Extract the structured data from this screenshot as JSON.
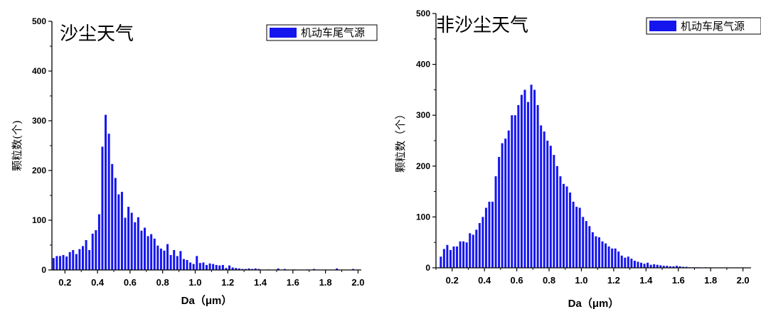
{
  "chart_data": [
    {
      "type": "bar",
      "title": "沙尘天气",
      "xlabel": "Da（μm）",
      "ylabel": "颗粒数(个)",
      "xlim": [
        0.12,
        2.02
      ],
      "ylim": [
        0,
        500
      ],
      "xticks": [
        "0.2",
        "0.4",
        "0.6",
        "0.8",
        "1.0",
        "1.2",
        "1.4",
        "1.6",
        "1.8",
        "2.0"
      ],
      "yticks": [
        "0",
        "100",
        "200",
        "300",
        "400",
        "500"
      ],
      "legend": "top-right",
      "color": "#1515ee",
      "series": [
        {
          "name": "机动车尾气源",
          "x": [
            0.13,
            0.15,
            0.17,
            0.19,
            0.21,
            0.23,
            0.25,
            0.27,
            0.29,
            0.31,
            0.33,
            0.35,
            0.37,
            0.39,
            0.41,
            0.43,
            0.45,
            0.47,
            0.49,
            0.51,
            0.53,
            0.55,
            0.57,
            0.59,
            0.61,
            0.63,
            0.65,
            0.67,
            0.69,
            0.71,
            0.73,
            0.75,
            0.77,
            0.79,
            0.81,
            0.83,
            0.85,
            0.87,
            0.89,
            0.91,
            0.93,
            0.95,
            0.97,
            0.99,
            1.01,
            1.03,
            1.05,
            1.07,
            1.09,
            1.11,
            1.13,
            1.15,
            1.17,
            1.19,
            1.21,
            1.23,
            1.25,
            1.27,
            1.29,
            1.31,
            1.33,
            1.35,
            1.37,
            1.39,
            1.45,
            1.51,
            1.55,
            1.61,
            1.69,
            1.73,
            1.87,
            1.97
          ],
          "values": [
            24,
            28,
            28,
            30,
            27,
            36,
            40,
            32,
            42,
            48,
            60,
            40,
            73,
            80,
            112,
            248,
            312,
            274,
            213,
            185,
            152,
            157,
            105,
            127,
            115,
            96,
            106,
            79,
            85,
            68,
            72,
            63,
            49,
            43,
            39,
            52,
            30,
            40,
            28,
            38,
            22,
            20,
            15,
            12,
            28,
            14,
            15,
            10,
            13,
            12,
            10,
            9,
            10,
            4,
            9,
            5,
            4,
            3,
            2,
            2,
            3,
            2,
            3,
            2,
            1,
            3,
            2,
            1,
            1,
            2,
            3,
            2
          ]
        }
      ]
    },
    {
      "type": "bar",
      "title": "非沙尘天气",
      "xlabel": "Da（μm）",
      "ylabel": "颗粒数（个）",
      "xlim": [
        0.1,
        2.05
      ],
      "ylim": [
        0,
        500
      ],
      "xticks": [
        "0.2",
        "0.4",
        "0.6",
        "0.8",
        "1.0",
        "1.2",
        "1.4",
        "1.6",
        "1.8",
        "2.0"
      ],
      "yticks": [
        "0",
        "100",
        "200",
        "300",
        "400",
        "500"
      ],
      "legend": "top-right",
      "color": "#1515ee",
      "series": [
        {
          "name": "机动车尾气源",
          "x": [
            0.13,
            0.15,
            0.17,
            0.19,
            0.21,
            0.23,
            0.25,
            0.27,
            0.29,
            0.31,
            0.33,
            0.35,
            0.37,
            0.39,
            0.41,
            0.43,
            0.45,
            0.47,
            0.49,
            0.51,
            0.53,
            0.55,
            0.57,
            0.59,
            0.61,
            0.63,
            0.65,
            0.67,
            0.69,
            0.71,
            0.73,
            0.75,
            0.77,
            0.79,
            0.81,
            0.83,
            0.85,
            0.87,
            0.89,
            0.91,
            0.93,
            0.95,
            0.97,
            0.99,
            1.01,
            1.03,
            1.05,
            1.07,
            1.09,
            1.11,
            1.13,
            1.15,
            1.17,
            1.19,
            1.21,
            1.23,
            1.25,
            1.27,
            1.29,
            1.31,
            1.33,
            1.35,
            1.37,
            1.39,
            1.41,
            1.43,
            1.45,
            1.47,
            1.49,
            1.51,
            1.53,
            1.55,
            1.57,
            1.59,
            1.61,
            1.63,
            1.65,
            1.67,
            1.69,
            1.71,
            1.73,
            1.75,
            1.77,
            1.79
          ],
          "values": [
            22,
            37,
            45,
            35,
            42,
            42,
            52,
            52,
            50,
            68,
            65,
            75,
            88,
            100,
            118,
            130,
            130,
            180,
            218,
            245,
            254,
            270,
            300,
            300,
            320,
            340,
            350,
            326,
            360,
            350,
            320,
            280,
            268,
            250,
            240,
            222,
            200,
            180,
            165,
            160,
            148,
            130,
            120,
            118,
            100,
            92,
            82,
            70,
            62,
            60,
            52,
            48,
            42,
            38,
            38,
            32,
            24,
            20,
            22,
            18,
            14,
            12,
            10,
            8,
            10,
            6,
            7,
            6,
            5,
            4,
            4,
            3,
            3,
            4,
            3,
            2,
            2,
            1,
            1,
            1,
            1,
            0,
            1,
            0
          ]
        }
      ]
    }
  ]
}
